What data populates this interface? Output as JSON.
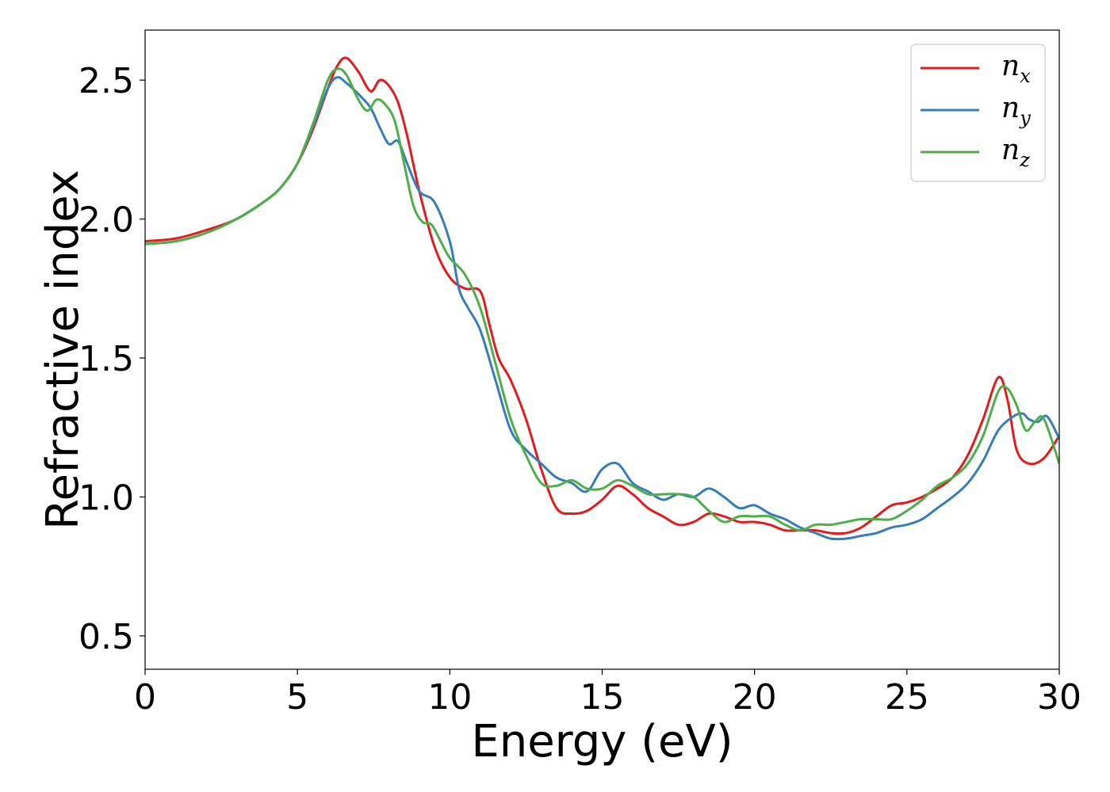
{
  "chart_data": {
    "type": "line",
    "title": "",
    "xlabel": "Energy (eV)",
    "ylabel": "Refractive index",
    "xlim": [
      0,
      30
    ],
    "ylim": [
      0.38,
      2.68
    ],
    "xticks": [
      0,
      5,
      10,
      15,
      20,
      25,
      30
    ],
    "xtick_labels": [
      "0",
      "5",
      "10",
      "15",
      "20",
      "25",
      "30"
    ],
    "yticks": [
      0.5,
      1.0,
      1.5,
      2.0,
      2.5
    ],
    "ytick_labels": [
      "0.5",
      "1.0",
      "1.5",
      "2.0",
      "2.5"
    ],
    "grid": false,
    "legend_position": "top-right",
    "series": [
      {
        "name": "n",
        "subscript": "x",
        "color": "#e41a1c",
        "x": [
          0,
          1,
          2,
          3,
          4,
          4.5,
          5,
          5.5,
          6,
          6.3,
          6.6,
          7,
          7.4,
          7.7,
          8,
          8.3,
          8.6,
          9,
          9.5,
          10,
          10.5,
          11,
          11.3,
          11.6,
          12,
          12.5,
          13,
          13.5,
          14,
          14.5,
          15,
          15.5,
          16,
          16.5,
          17,
          17.5,
          18,
          18.5,
          19,
          19.5,
          20,
          20.5,
          21,
          21.5,
          22,
          22.5,
          23,
          23.5,
          24,
          24.5,
          25,
          25.5,
          26,
          26.5,
          27,
          27.5,
          28,
          28.3,
          28.6,
          29,
          29.5,
          30
        ],
        "y": [
          1.92,
          1.93,
          1.96,
          2.0,
          2.07,
          2.12,
          2.2,
          2.32,
          2.47,
          2.55,
          2.58,
          2.53,
          2.46,
          2.5,
          2.48,
          2.42,
          2.3,
          2.1,
          1.9,
          1.79,
          1.75,
          1.74,
          1.62,
          1.5,
          1.42,
          1.28,
          1.1,
          0.96,
          0.94,
          0.95,
          0.99,
          1.04,
          1.01,
          0.96,
          0.93,
          0.9,
          0.91,
          0.94,
          0.93,
          0.91,
          0.91,
          0.9,
          0.88,
          0.88,
          0.88,
          0.87,
          0.87,
          0.89,
          0.93,
          0.97,
          0.98,
          1.0,
          1.03,
          1.07,
          1.15,
          1.28,
          1.43,
          1.35,
          1.17,
          1.12,
          1.14,
          1.22
        ]
      },
      {
        "name": "n",
        "subscript": "y",
        "color": "#377eb8",
        "x": [
          0,
          1,
          2,
          3,
          4,
          4.5,
          5,
          5.5,
          6,
          6.3,
          6.6,
          7,
          7.4,
          7.7,
          8,
          8.3,
          8.6,
          9,
          9.5,
          10,
          10.3,
          10.6,
          11,
          11.5,
          12,
          12.5,
          13,
          13.5,
          14,
          14.5,
          15,
          15.5,
          16,
          16.5,
          17,
          17.5,
          18,
          18.5,
          19,
          19.5,
          20,
          20.5,
          21,
          21.5,
          22,
          22.5,
          23,
          23.5,
          24,
          24.5,
          25,
          25.5,
          26,
          26.5,
          27,
          27.5,
          28,
          28.5,
          28.8,
          29,
          29.3,
          29.6,
          30
        ],
        "y": [
          1.91,
          1.92,
          1.95,
          2.0,
          2.07,
          2.12,
          2.2,
          2.33,
          2.47,
          2.51,
          2.49,
          2.45,
          2.4,
          2.33,
          2.27,
          2.28,
          2.2,
          2.1,
          2.06,
          1.92,
          1.75,
          1.68,
          1.6,
          1.42,
          1.24,
          1.17,
          1.12,
          1.07,
          1.05,
          1.02,
          1.1,
          1.12,
          1.05,
          1.02,
          0.99,
          1.01,
          1.0,
          1.03,
          1.0,
          0.96,
          0.97,
          0.94,
          0.92,
          0.89,
          0.87,
          0.85,
          0.85,
          0.86,
          0.87,
          0.89,
          0.9,
          0.92,
          0.96,
          1.0,
          1.05,
          1.13,
          1.24,
          1.29,
          1.3,
          1.28,
          1.27,
          1.29,
          1.21
        ]
      },
      {
        "name": "n",
        "subscript": "z",
        "color": "#4daf4a",
        "x": [
          0,
          1,
          2,
          3,
          4,
          4.5,
          5,
          5.5,
          6,
          6.3,
          6.6,
          7,
          7.3,
          7.6,
          7.9,
          8.2,
          8.5,
          8.8,
          9.1,
          9.4,
          9.7,
          10,
          10.5,
          11,
          11.5,
          12,
          12.5,
          13,
          13.5,
          14,
          14.5,
          15,
          15.5,
          16,
          16.5,
          17,
          17.5,
          18,
          18.5,
          19,
          19.5,
          20,
          20.5,
          21,
          21.5,
          22,
          22.5,
          23,
          23.5,
          24,
          24.5,
          25,
          25.5,
          26,
          26.5,
          27,
          27.5,
          28,
          28.3,
          28.6,
          28.9,
          29.2,
          29.5,
          30
        ],
        "y": [
          1.91,
          1.92,
          1.95,
          2.0,
          2.07,
          2.12,
          2.2,
          2.34,
          2.5,
          2.54,
          2.52,
          2.43,
          2.39,
          2.43,
          2.41,
          2.35,
          2.2,
          2.05,
          1.99,
          1.98,
          1.92,
          1.86,
          1.8,
          1.68,
          1.48,
          1.28,
          1.15,
          1.05,
          1.04,
          1.06,
          1.03,
          1.03,
          1.06,
          1.04,
          1.01,
          1.01,
          1.01,
          1.0,
          0.95,
          0.91,
          0.93,
          0.93,
          0.93,
          0.9,
          0.88,
          0.9,
          0.9,
          0.91,
          0.92,
          0.92,
          0.92,
          0.95,
          0.99,
          1.04,
          1.07,
          1.12,
          1.22,
          1.38,
          1.39,
          1.33,
          1.24,
          1.27,
          1.28,
          1.12
        ]
      }
    ]
  }
}
